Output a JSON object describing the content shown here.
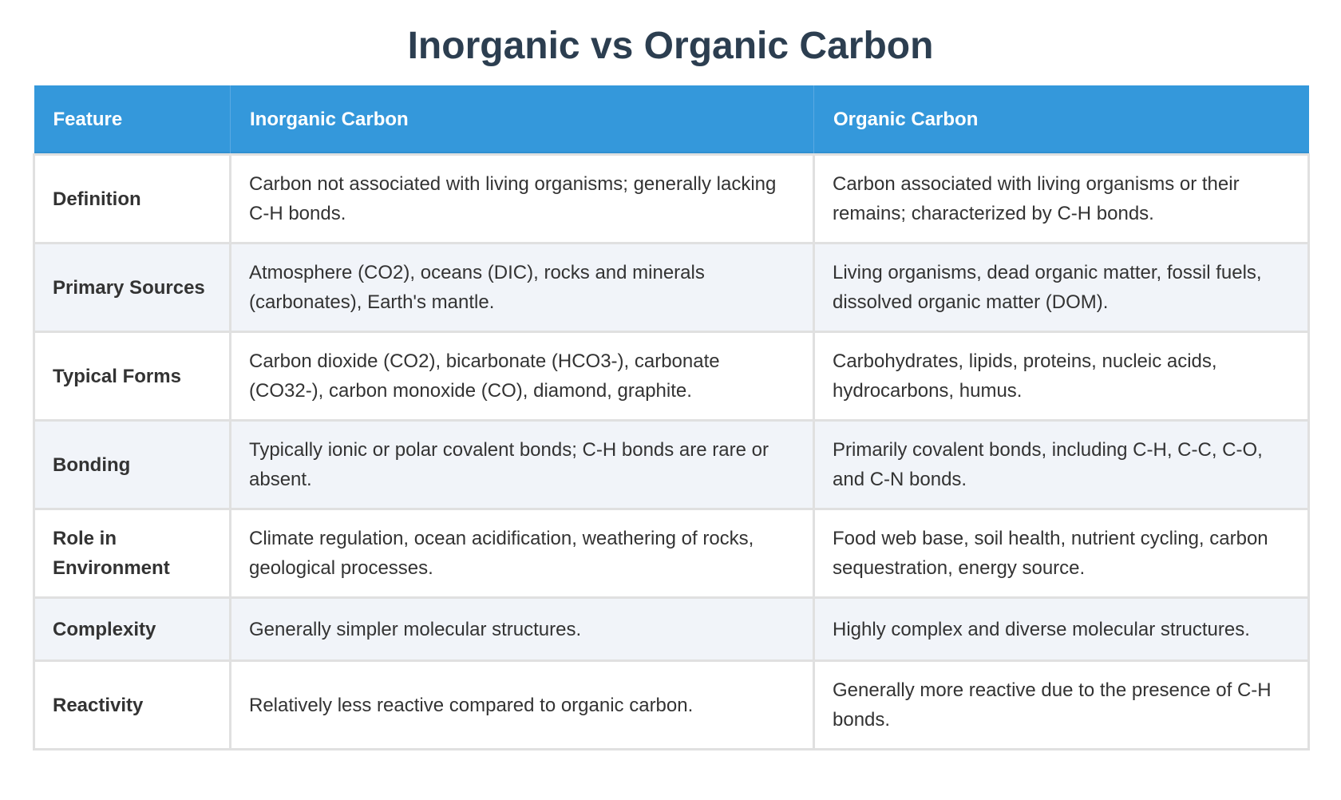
{
  "title": "Inorganic vs Organic Carbon",
  "colors": {
    "header": "#3498db",
    "title": "#2c3e50",
    "alt_row": "#f1f4f9"
  },
  "table": {
    "headers": [
      "Feature",
      "Inorganic Carbon",
      "Organic Carbon"
    ],
    "rows": [
      {
        "feature": "Definition",
        "inorganic": "Carbon not associated with living organisms; generally lacking C-H bonds.",
        "organic": "Carbon associated with living organisms or their remains; characterized by C-H bonds."
      },
      {
        "feature": "Primary Sources",
        "inorganic": "Atmosphere (CO2), oceans (DIC), rocks and minerals (carbonates), Earth's mantle.",
        "organic": "Living organisms, dead organic matter, fossil fuels, dissolved organic matter (DOM)."
      },
      {
        "feature": "Typical Forms",
        "inorganic": "Carbon dioxide (CO2), bicarbonate (HCO3-), carbonate (CO32-), carbon monoxide (CO), diamond, graphite.",
        "organic": "Carbohydrates, lipids, proteins, nucleic acids, hydrocarbons, humus."
      },
      {
        "feature": "Bonding",
        "inorganic": "Typically ionic or polar covalent bonds; C-H bonds are rare or absent.",
        "organic": "Primarily covalent bonds, including C-H, C-C, C-O, and C-N bonds."
      },
      {
        "feature": "Role in Environment",
        "inorganic": "Climate regulation, ocean acidification, weathering of rocks, geological processes.",
        "organic": "Food web base, soil health, nutrient cycling, carbon sequestration, energy source."
      },
      {
        "feature": "Complexity",
        "inorganic": "Generally simpler molecular structures.",
        "organic": "Highly complex and diverse molecular structures."
      },
      {
        "feature": "Reactivity",
        "inorganic": "Relatively less reactive compared to organic carbon.",
        "organic": "Generally more reactive due to the presence of C-H bonds."
      }
    ]
  }
}
